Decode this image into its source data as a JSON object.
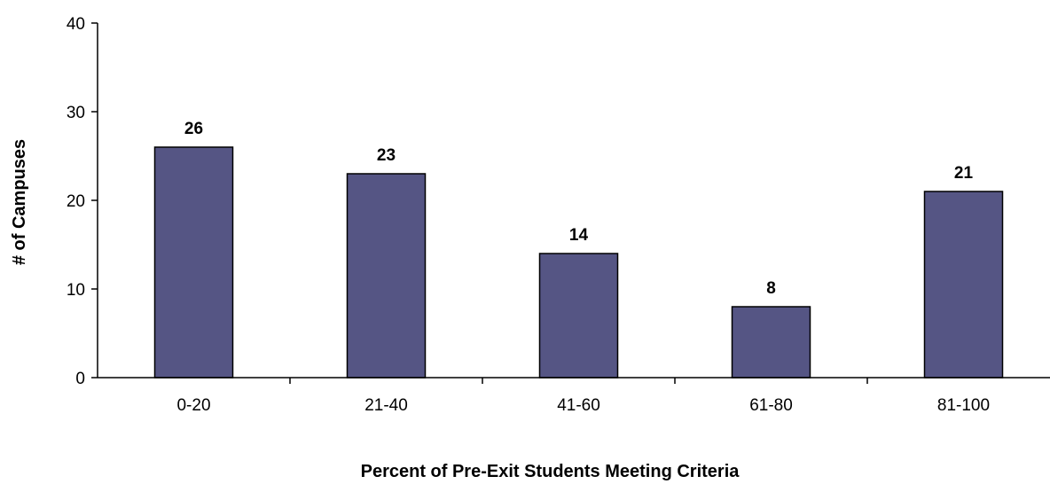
{
  "chart_data": {
    "type": "bar",
    "categories": [
      "0-20",
      "21-40",
      "41-60",
      "61-80",
      "81-100"
    ],
    "values": [
      26,
      23,
      14,
      8,
      21
    ],
    "data_labels": [
      "26",
      "23",
      "14",
      "8",
      "21"
    ],
    "y_ticks": [
      "0",
      "10",
      "20",
      "30",
      "40"
    ],
    "title": "",
    "xlabel": "Percent of Pre-Exit Students Meeting Criteria",
    "ylabel": "# of Campuses",
    "ylim": [
      0,
      40
    ],
    "grid": false,
    "legend": "none",
    "bar_color": "#555584",
    "bar_edge_color": "#000000"
  }
}
